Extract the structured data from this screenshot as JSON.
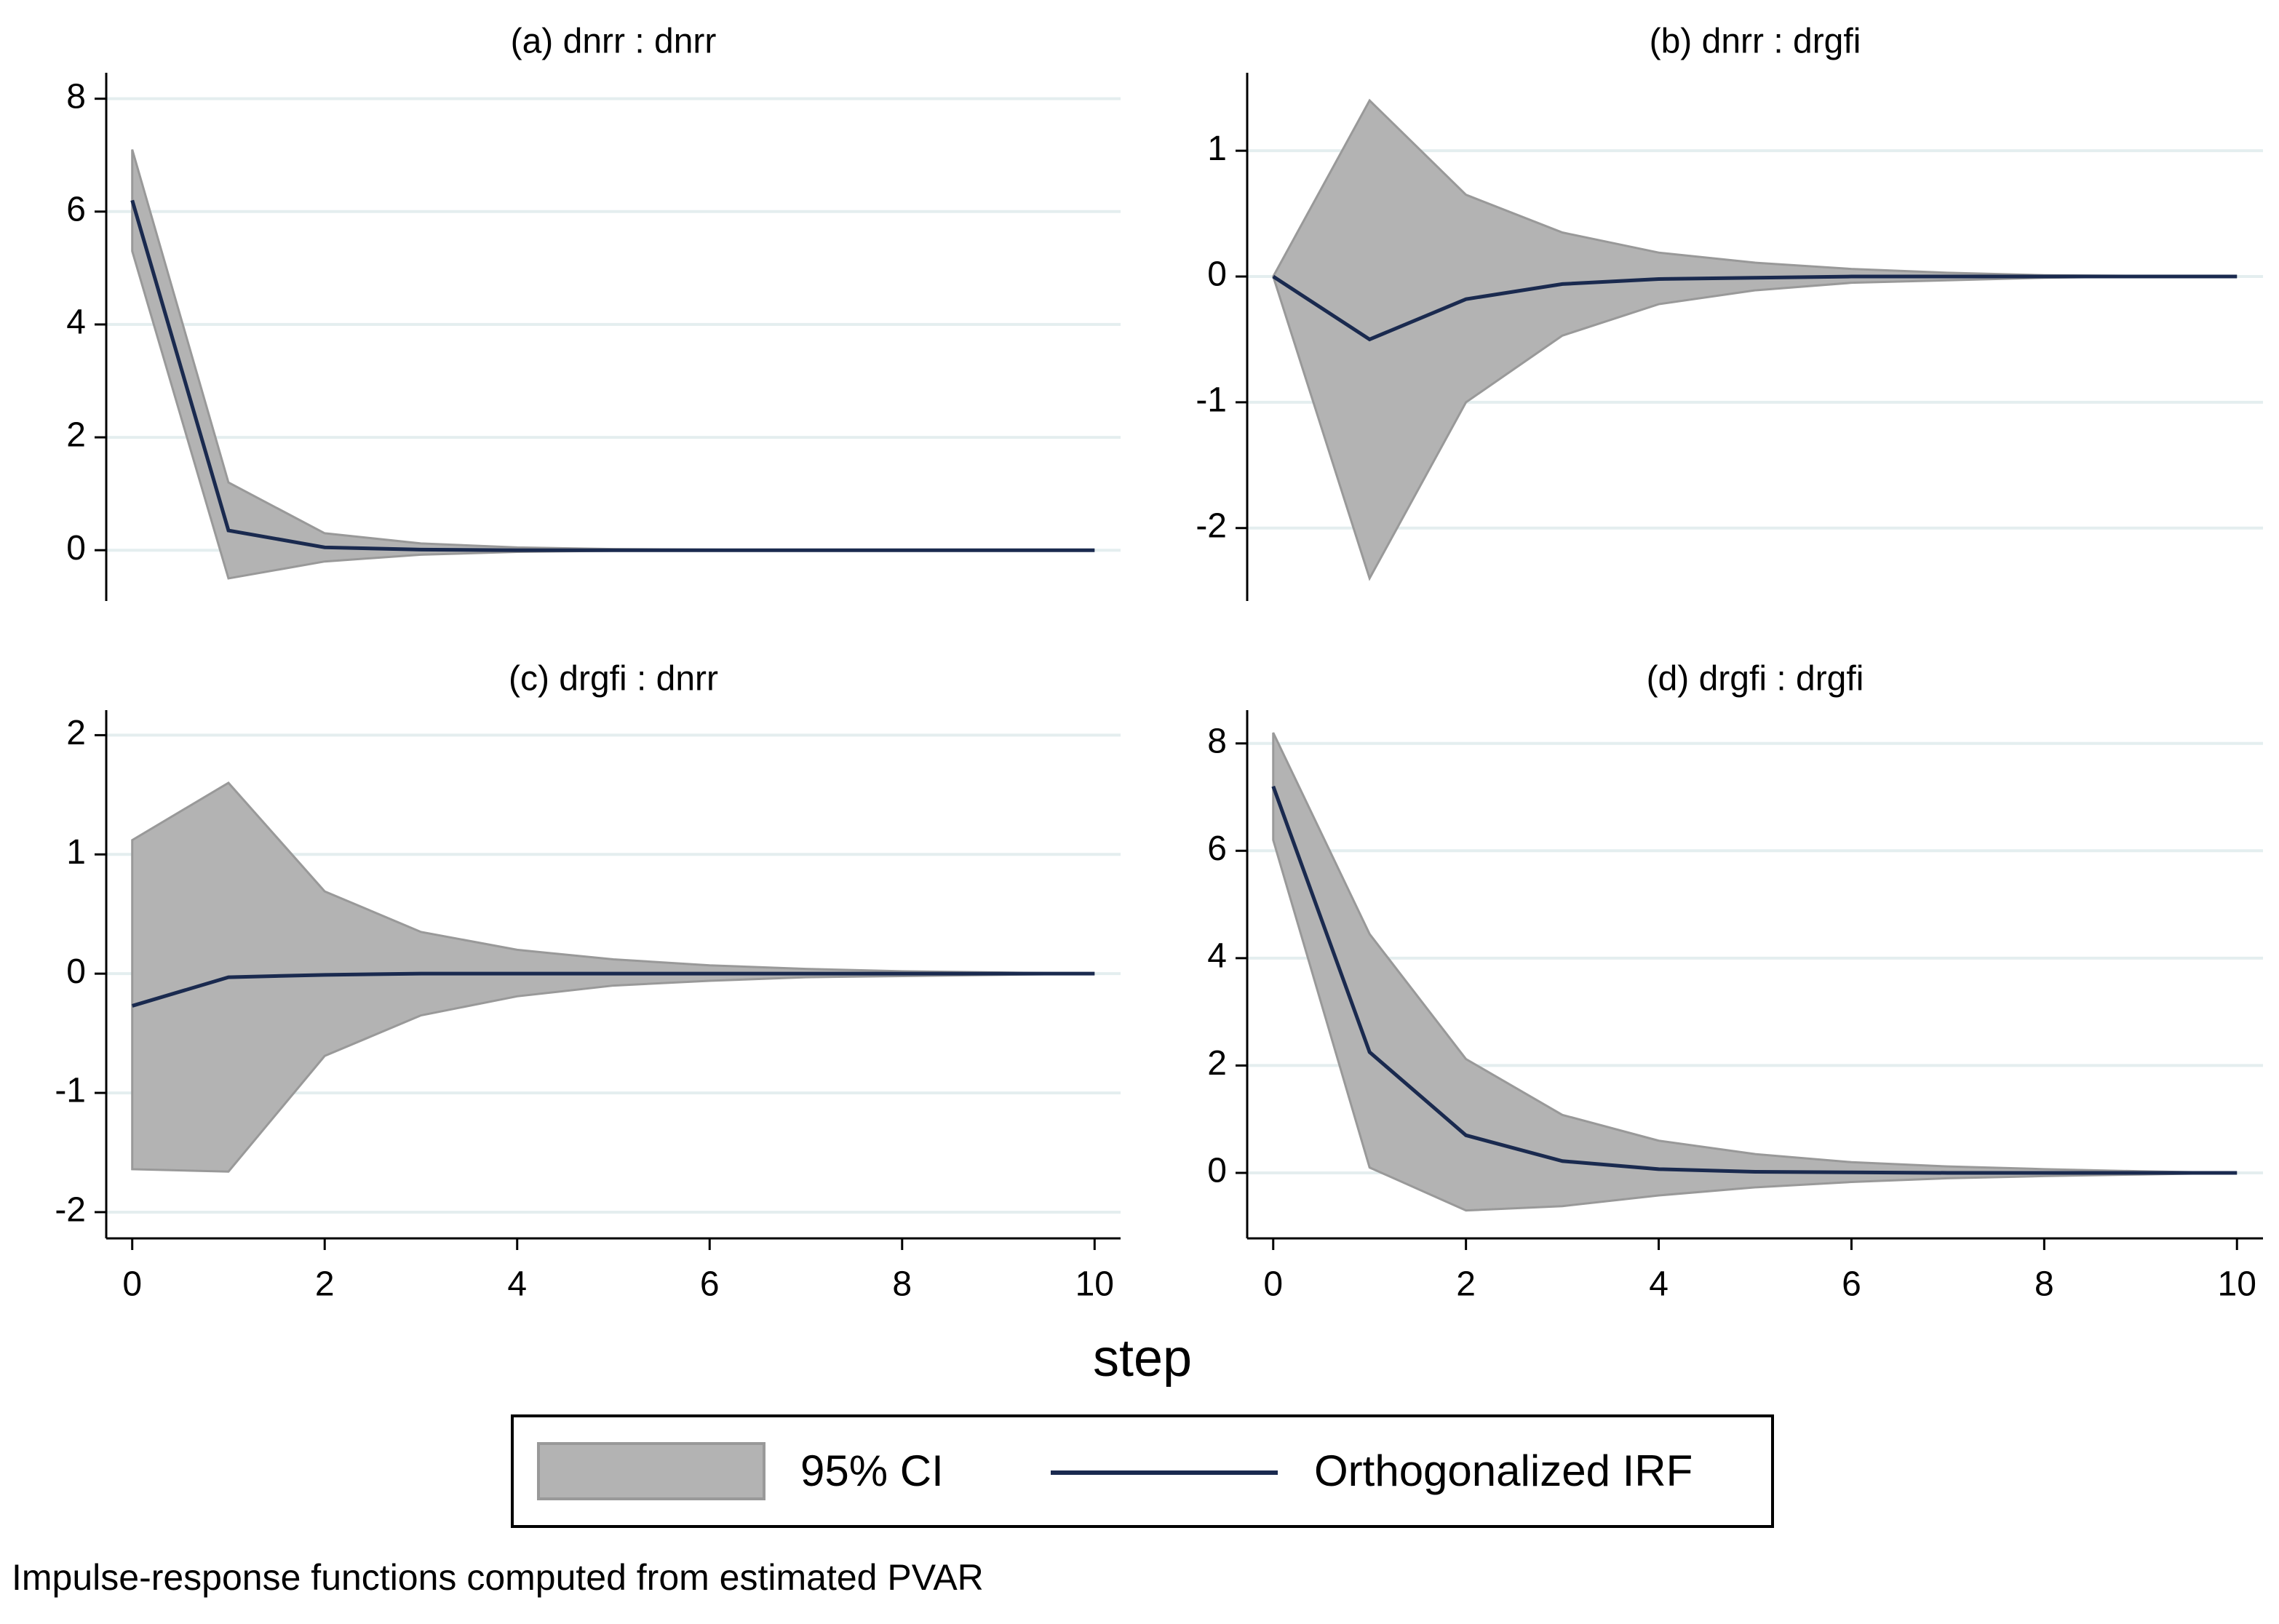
{
  "chart_data": [
    {
      "type": "band-line",
      "title": "(a) dnrr : dnrr",
      "x": [
        0,
        1,
        2,
        3,
        4,
        5,
        6,
        7,
        8,
        9,
        10
      ],
      "band": {
        "upper": [
          7.1,
          1.2,
          0.3,
          0.12,
          0.05,
          0.02,
          0.01,
          0,
          0,
          0,
          0
        ],
        "lower": [
          5.3,
          -0.5,
          -0.2,
          -0.08,
          -0.03,
          -0.01,
          0,
          0,
          0,
          0,
          0
        ]
      },
      "values": [
        6.2,
        0.35,
        0.05,
        0.01,
        0,
        0,
        0,
        0,
        0,
        0,
        0
      ],
      "xlim": [
        -0.27,
        10.27
      ],
      "ylim": [
        -0.9,
        8.46
      ],
      "yticks": [
        0,
        2,
        4,
        6,
        8
      ],
      "grid": true
    },
    {
      "type": "band-line",
      "title": "(b) dnrr : drgfi",
      "x": [
        0,
        1,
        2,
        3,
        4,
        5,
        6,
        7,
        8,
        9,
        10
      ],
      "band": {
        "upper": [
          0,
          1.4,
          0.65,
          0.35,
          0.19,
          0.11,
          0.06,
          0.03,
          0.01,
          0.005,
          0
        ],
        "lower": [
          0,
          -2.4,
          -1.0,
          -0.47,
          -0.22,
          -0.11,
          -0.05,
          -0.03,
          -0.01,
          0,
          0
        ]
      },
      "values": [
        0,
        -0.5,
        -0.18,
        -0.06,
        -0.02,
        -0.01,
        0,
        0,
        0,
        0,
        0
      ],
      "xlim": [
        -0.27,
        10.27
      ],
      "ylim": [
        -2.58,
        1.62
      ],
      "yticks": [
        -2,
        -1,
        0,
        1
      ],
      "grid": true
    },
    {
      "type": "band-line",
      "title": "(c) drgfi : dnrr",
      "x": [
        0,
        1,
        2,
        3,
        4,
        5,
        6,
        7,
        8,
        9,
        10
      ],
      "band": {
        "upper": [
          1.12,
          1.6,
          0.69,
          0.35,
          0.2,
          0.12,
          0.07,
          0.04,
          0.02,
          0.01,
          0
        ],
        "lower": [
          -1.64,
          -1.66,
          -0.69,
          -0.35,
          -0.19,
          -0.1,
          -0.06,
          -0.03,
          -0.02,
          -0.01,
          0
        ]
      },
      "values": [
        -0.27,
        -0.03,
        -0.01,
        0,
        0,
        0,
        0,
        0,
        0,
        0,
        0
      ],
      "xlim": [
        -0.27,
        10.27
      ],
      "xticks": [
        0,
        2,
        4,
        6,
        8,
        10
      ],
      "ylim": [
        -2.22,
        2.21
      ],
      "yticks": [
        -2,
        -1,
        0,
        1,
        2
      ],
      "grid": true
    },
    {
      "type": "band-line",
      "title": "(d) drgfi : drgfi",
      "x": [
        0,
        1,
        2,
        3,
        4,
        5,
        6,
        7,
        8,
        9,
        10
      ],
      "band": {
        "upper": [
          8.2,
          4.45,
          2.12,
          1.08,
          0.6,
          0.35,
          0.2,
          0.12,
          0.07,
          0.03,
          0
        ],
        "lower": [
          6.2,
          0.1,
          -0.7,
          -0.62,
          -0.42,
          -0.27,
          -0.17,
          -0.1,
          -0.06,
          -0.03,
          0
        ]
      },
      "values": [
        7.2,
        2.25,
        0.7,
        0.22,
        0.07,
        0.02,
        0.01,
        0,
        0,
        0,
        0
      ],
      "xlim": [
        -0.27,
        10.27
      ],
      "xticks": [
        0,
        2,
        4,
        6,
        8,
        10
      ],
      "ylim": [
        -1.22,
        8.62
      ],
      "yticks": [
        0,
        2,
        4,
        6,
        8
      ],
      "grid": true
    }
  ],
  "xlabel": "step",
  "legend": [
    {
      "name": "95% CI",
      "color": "#b3b3b3"
    },
    {
      "name": "Orthogonalized IRF",
      "color": "#1a2a4f"
    }
  ],
  "note": "Impulse-response functions computed from estimated PVAR"
}
